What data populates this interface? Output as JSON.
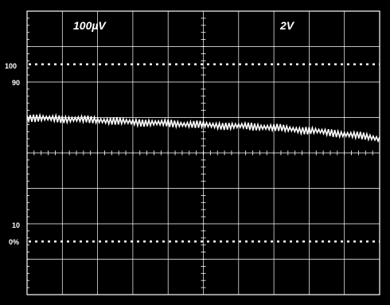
{
  "chart_data": {
    "type": "line",
    "title": "",
    "channel_labels": {
      "ch1_scale": "100µV",
      "ch2_scale": "2V"
    },
    "grid": true,
    "graticule": {
      "divisions_x": 10,
      "divisions_y": 8
    },
    "y_reference_labels": [
      "100",
      "90",
      "10",
      "0%"
    ],
    "trace_color": "#ffffff",
    "background_color": "#000000",
    "series": [
      {
        "x": [
          0,
          0.25,
          0.5,
          0.75,
          1,
          1.25,
          1.5,
          1.75,
          2,
          2.25,
          2.5,
          2.75,
          3,
          3.25,
          3.5,
          3.75,
          4,
          4.25,
          4.5,
          4.75,
          5,
          5.25,
          5.5,
          5.75,
          6,
          6.25,
          6.5,
          6.75,
          7,
          7.25,
          7.5,
          7.75,
          8,
          8.25,
          8.5,
          8.75,
          9,
          9.25,
          9.5,
          9.75,
          10
        ],
        "values": [
          1.0,
          0.98,
          0.97,
          0.97,
          0.96,
          0.95,
          0.95,
          0.93,
          0.92,
          0.91,
          0.9,
          0.88,
          0.87,
          0.86,
          0.85,
          0.84,
          0.83,
          0.82,
          0.81,
          0.8,
          0.79,
          0.78,
          0.77,
          0.76,
          0.76,
          0.75,
          0.74,
          0.73,
          0.71,
          0.69,
          0.67,
          0.65,
          0.63,
          0.61,
          0.58,
          0.56,
          0.53,
          0.5,
          0.47,
          0.44,
          0.4
        ]
      }
    ],
    "xlim": [
      0,
      10
    ],
    "ylim": [
      -4,
      4
    ]
  }
}
